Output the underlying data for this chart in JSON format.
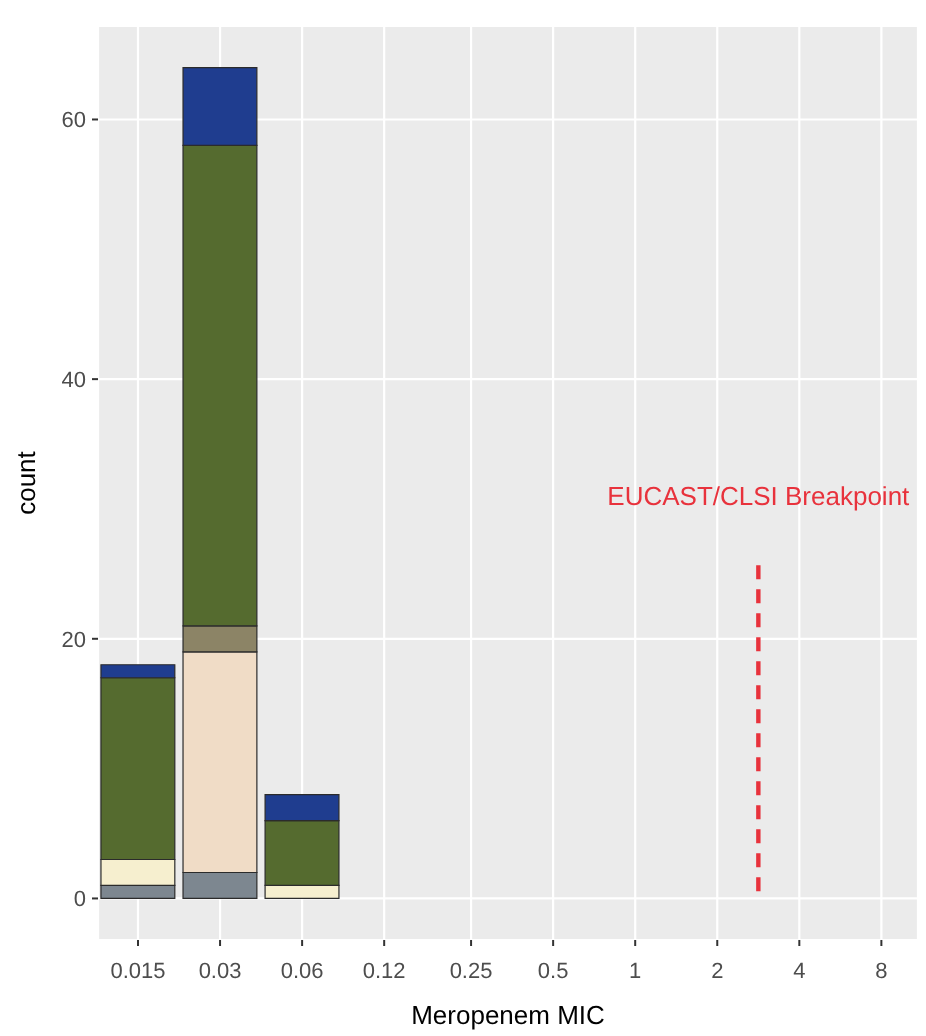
{
  "chart_data": {
    "type": "bar",
    "stacked": true,
    "xlabel": "Meropenem MIC",
    "ylabel": "count",
    "log": "x",
    "x": [
      0.015,
      0.03,
      0.06,
      0.12,
      0.25,
      0.5,
      1,
      2,
      4,
      8
    ],
    "series": [
      {
        "color": "#7d8790",
        "values": [
          1,
          2,
          0,
          0,
          0,
          0,
          0,
          0,
          0,
          0
        ]
      },
      {
        "color": "#f6efcf",
        "values": [
          2,
          0,
          1,
          0,
          0,
          0,
          0,
          0,
          0,
          0
        ]
      },
      {
        "color": "#f0dcc6",
        "values": [
          0,
          17,
          0,
          0,
          0,
          0,
          0,
          0,
          0,
          0
        ]
      },
      {
        "color": "#8c8466",
        "values": [
          0,
          2,
          0,
          0,
          0,
          0,
          0,
          0,
          0,
          0
        ]
      },
      {
        "color": "#556b2f",
        "values": [
          14,
          37,
          5,
          0,
          0,
          0,
          0,
          0,
          0,
          0
        ]
      },
      {
        "color": "#1f3d8f",
        "values": [
          1,
          6,
          2,
          0,
          0,
          0,
          0,
          0,
          0,
          0
        ]
      }
    ],
    "xlim": [
      0.0107,
      10.9
    ],
    "xticks": [
      0.015,
      0.03,
      0.06,
      0.12,
      0.25,
      0.5,
      1,
      2,
      4,
      8
    ],
    "ylim": [
      -3.2,
      67.2
    ],
    "yticks": [
      0,
      20,
      40,
      60
    ],
    "grid": true,
    "ref_lines": [
      {
        "axis": "x",
        "value": 2.83,
        "label": "EUCAST/CLSI Breakpoint",
        "color": "#e8323c",
        "line_style": "dashed"
      }
    ]
  }
}
